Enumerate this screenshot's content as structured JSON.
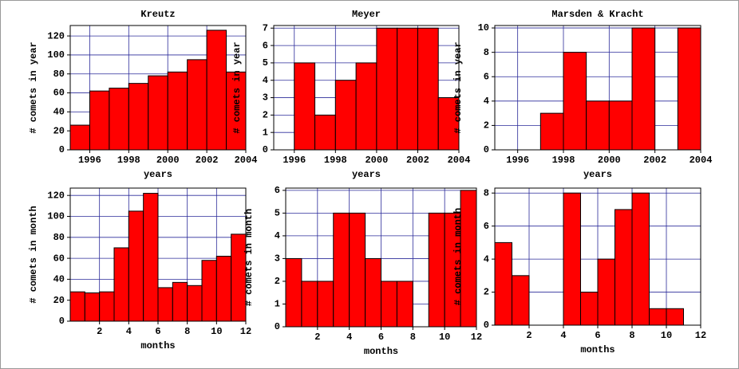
{
  "chart_data": [
    {
      "type": "histogram",
      "title": "Kreutz",
      "xlabel": "years",
      "ylabel": "# comets in year",
      "color": "#ff0000",
      "grid": true,
      "bins": [
        1995,
        1996,
        1997,
        1998,
        1999,
        2000,
        2001,
        2002,
        2003,
        2004
      ],
      "values": [
        26,
        62,
        65,
        70,
        78,
        82,
        95,
        126,
        82
      ],
      "xlim": [
        1995,
        2004
      ],
      "xticks": [
        1996,
        1998,
        2000,
        2002,
        2004
      ],
      "ylim": [
        0,
        131
      ],
      "yticks": [
        0,
        20,
        40,
        60,
        80,
        100,
        120
      ]
    },
    {
      "type": "histogram",
      "title": "Meyer",
      "xlabel": "years",
      "ylabel": "# comets in year",
      "color": "#ff0000",
      "grid": true,
      "bins": [
        1995,
        1996,
        1997,
        1998,
        1999,
        2000,
        2001,
        2002,
        2003,
        2004
      ],
      "values": [
        0,
        5,
        2,
        4,
        5,
        7,
        7,
        7,
        3
      ],
      "xlim": [
        1995,
        2004
      ],
      "xticks": [
        1996,
        1998,
        2000,
        2002,
        2004
      ],
      "ylim": [
        0,
        7.15
      ],
      "yticks": [
        0,
        1,
        2,
        3,
        4,
        5,
        6,
        7
      ]
    },
    {
      "type": "histogram",
      "title": "Marsden & Kracht",
      "xlabel": "years",
      "ylabel": "# comets in year",
      "color": "#ff0000",
      "grid": true,
      "bins": [
        1995,
        1996,
        1997,
        1998,
        1999,
        2000,
        2001,
        2002,
        2003,
        2004
      ],
      "values": [
        0,
        0,
        3,
        8,
        4,
        4,
        10,
        0,
        10
      ],
      "xlim": [
        1995,
        2004
      ],
      "xticks": [
        1996,
        1998,
        2000,
        2002,
        2004
      ],
      "ylim": [
        0,
        10.2
      ],
      "yticks": [
        0,
        2,
        4,
        6,
        8,
        10
      ]
    },
    {
      "type": "histogram",
      "xlabel": "months",
      "ylabel": "# comets in month",
      "color": "#ff0000",
      "grid": true,
      "bins": [
        0,
        1,
        2,
        3,
        4,
        5,
        6,
        7,
        8,
        9,
        10,
        11,
        12
      ],
      "values": [
        28,
        27,
        28,
        70,
        105,
        122,
        32,
        37,
        34,
        58,
        62,
        83
      ],
      "xlim": [
        0,
        12
      ],
      "xticks": [
        2,
        4,
        6,
        8,
        10,
        12
      ],
      "ylim": [
        0,
        127
      ],
      "yticks": [
        0,
        20,
        40,
        60,
        80,
        100,
        120
      ]
    },
    {
      "type": "histogram",
      "xlabel": "months",
      "ylabel": "# comets in month",
      "color": "#ff0000",
      "grid": true,
      "bins": [
        0,
        1,
        2,
        3,
        4,
        5,
        6,
        7,
        8,
        9,
        10,
        11,
        12
      ],
      "values": [
        3,
        2,
        2,
        5,
        5,
        3,
        2,
        2,
        0,
        5,
        5,
        6
      ],
      "xlim": [
        0,
        12
      ],
      "xticks": [
        2,
        4,
        6,
        8,
        10,
        12
      ],
      "ylim": [
        0,
        6.1
      ],
      "yticks": [
        0,
        1,
        2,
        3,
        4,
        5,
        6
      ]
    },
    {
      "type": "histogram",
      "xlabel": "months",
      "ylabel": "# comets in month",
      "color": "#ff0000",
      "grid": true,
      "bins": [
        0,
        1,
        2,
        3,
        4,
        5,
        6,
        7,
        8,
        9,
        10,
        11,
        12
      ],
      "values": [
        5,
        3,
        0,
        0,
        8,
        2,
        4,
        7,
        8,
        1,
        1,
        0
      ],
      "xlim": [
        0,
        12
      ],
      "xticks": [
        2,
        4,
        6,
        8,
        10,
        12
      ],
      "ylim": [
        0,
        8.3
      ],
      "yticks": [
        0,
        2,
        4,
        6,
        8
      ]
    }
  ]
}
